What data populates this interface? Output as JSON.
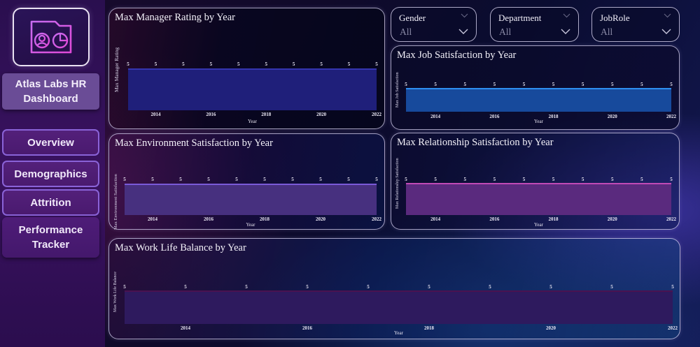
{
  "sidebar": {
    "logo_icon": "hr-dashboard-window-icon",
    "title": "Atlas Labs HR Dashboard",
    "nav": [
      {
        "label": "Overview"
      },
      {
        "label": "Demographics"
      },
      {
        "label": "Attrition"
      },
      {
        "label": "Performance Tracker"
      }
    ]
  },
  "filters": [
    {
      "label": "Gender",
      "value": "All"
    },
    {
      "label": "Department",
      "value": "All"
    },
    {
      "label": "JobRole",
      "value": "All"
    }
  ],
  "charts": {
    "manager": {
      "title": "Max Manager Rating by Year",
      "ylabel": "Max Manager Rating",
      "xlabel": "Year",
      "color": "#1f1f7a",
      "line": "#3535b0"
    },
    "job": {
      "title": "Max Job Satisfaction by Year",
      "ylabel": "Max Job Satisfaction",
      "xlabel": "Year",
      "color": "#174a9c",
      "line": "#2f8ff0"
    },
    "environment": {
      "title": "Max Environment Satisfaction by Year",
      "ylabel": "Max Environment Satisfaction",
      "xlabel": "Year",
      "color": "#47307f",
      "line": "#7a5ad8"
    },
    "relationship": {
      "title": "Max Relationship Satisfaction by Year",
      "ylabel": "Max Relationship Satisfaction",
      "xlabel": "Year",
      "color": "#5a2a7e",
      "line": "#c04ab6"
    },
    "worklife": {
      "title": "Max Work Life Balance by Year",
      "ylabel": "Max Work Life Balance",
      "xlabel": "Year",
      "color": "#2e1a5e",
      "line": "#4a1250"
    }
  },
  "chart_data": [
    {
      "type": "area",
      "title": "Max Manager Rating by Year",
      "xlabel": "Year",
      "ylabel": "Max Manager Rating",
      "x": [
        2013,
        2014,
        2015,
        2016,
        2017,
        2018,
        2019,
        2020,
        2021,
        2022
      ],
      "values": [
        5,
        5,
        5,
        5,
        5,
        5,
        5,
        5,
        5,
        5
      ],
      "xticks": [
        "2014",
        "2016",
        "2018",
        "2020",
        "2022"
      ]
    },
    {
      "type": "area",
      "title": "Max Job Satisfaction by Year",
      "xlabel": "Year",
      "ylabel": "Max Job Satisfaction",
      "x": [
        2013,
        2014,
        2015,
        2016,
        2017,
        2018,
        2019,
        2020,
        2021,
        2022
      ],
      "values": [
        5,
        5,
        5,
        5,
        5,
        5,
        5,
        5,
        5,
        5
      ],
      "xticks": [
        "2014",
        "2016",
        "2018",
        "2020",
        "2022"
      ]
    },
    {
      "type": "area",
      "title": "Max Environment Satisfaction by Year",
      "xlabel": "Year",
      "ylabel": "Max Environment Satisfaction",
      "x": [
        2013,
        2014,
        2015,
        2016,
        2017,
        2018,
        2019,
        2020,
        2021,
        2022
      ],
      "values": [
        5,
        5,
        5,
        5,
        5,
        5,
        5,
        5,
        5,
        5
      ],
      "xticks": [
        "2014",
        "2016",
        "2018",
        "2020",
        "2022"
      ]
    },
    {
      "type": "area",
      "title": "Max Relationship Satisfaction by Year",
      "xlabel": "Year",
      "ylabel": "Max Relationship Satisfaction",
      "x": [
        2013,
        2014,
        2015,
        2016,
        2017,
        2018,
        2019,
        2020,
        2021,
        2022
      ],
      "values": [
        5,
        5,
        5,
        5,
        5,
        5,
        5,
        5,
        5,
        5
      ],
      "xticks": [
        "2014",
        "2016",
        "2018",
        "2020",
        "2022"
      ]
    },
    {
      "type": "area",
      "title": "Max Work Life Balance by Year",
      "xlabel": "Year",
      "ylabel": "Max Work Life Balance",
      "x": [
        2013,
        2014,
        2015,
        2016,
        2017,
        2018,
        2019,
        2020,
        2021,
        2022
      ],
      "values": [
        5,
        5,
        5,
        5,
        5,
        5,
        5,
        5,
        5,
        5
      ],
      "xticks": [
        "2014",
        "2016",
        "2018",
        "2020",
        "2022"
      ]
    }
  ]
}
